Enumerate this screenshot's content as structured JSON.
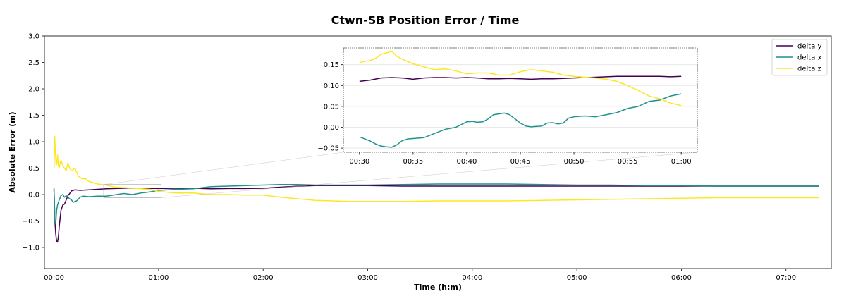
{
  "chart_data": {
    "type": "line",
    "title": "Ctwn-SB Position Error / Time",
    "xlabel": "Time (h:m)",
    "ylabel": "Absolute Error (m)",
    "x_unit": "minutes",
    "xlim": [
      -5.5,
      446
    ],
    "ylim": [
      -1.4,
      3.0
    ],
    "x_ticks": [
      0,
      60,
      120,
      180,
      240,
      300,
      360,
      420
    ],
    "x_tick_labels": [
      "00:00",
      "01:00",
      "02:00",
      "03:00",
      "04:00",
      "05:00",
      "06:00",
      "07:00"
    ],
    "y_ticks": [
      -1.0,
      -0.5,
      0.0,
      0.5,
      1.0,
      1.5,
      2.0,
      2.5,
      3.0
    ],
    "y_tick_labels": [
      "−1.0",
      "−0.5",
      "0.0",
      "0.5",
      "1.0",
      "1.5",
      "2.0",
      "2.5",
      "3.0"
    ],
    "legend_position": "top-right",
    "grid": false,
    "series": [
      {
        "name": "delta y",
        "color": "#440154",
        "x": [
          0,
          0.5,
          1,
          1.5,
          2,
          2.5,
          3,
          4,
          5,
          6,
          7,
          8,
          9,
          10,
          12,
          15,
          20,
          25,
          30,
          40,
          50,
          60,
          70,
          80,
          90,
          100,
          110,
          120,
          130,
          140,
          150,
          160,
          170,
          180,
          200,
          220,
          240,
          260,
          280,
          300,
          320,
          340,
          360,
          380,
          400,
          420,
          439
        ],
        "values": [
          0.1,
          -0.5,
          -0.75,
          -0.88,
          -0.9,
          -0.8,
          -0.6,
          -0.3,
          -0.2,
          -0.18,
          -0.1,
          -0.02,
          0.02,
          0.07,
          0.09,
          0.08,
          0.09,
          0.1,
          0.11,
          0.12,
          0.12,
          0.115,
          0.12,
          0.12,
          0.11,
          0.115,
          0.115,
          0.12,
          0.14,
          0.16,
          0.17,
          0.17,
          0.17,
          0.17,
          0.16,
          0.16,
          0.16,
          0.16,
          0.16,
          0.16,
          0.16,
          0.16,
          0.16,
          0.16,
          0.16,
          0.16,
          0.16
        ]
      },
      {
        "name": "delta x",
        "color": "#21918c",
        "x": [
          0,
          0.5,
          1,
          1.5,
          2,
          3,
          4,
          5,
          6,
          7,
          8,
          9,
          10,
          11,
          12,
          13,
          15,
          17,
          20,
          25,
          30,
          40,
          45,
          50,
          55,
          60,
          70,
          80,
          90,
          100,
          110,
          120,
          130,
          140,
          150,
          160,
          170,
          180,
          200,
          220,
          240,
          260,
          280,
          300,
          320,
          340,
          360,
          380,
          400,
          420,
          439
        ],
        "values": [
          0.12,
          -0.5,
          -0.55,
          -0.3,
          -0.2,
          -0.1,
          -0.02,
          0.0,
          -0.05,
          -0.02,
          -0.05,
          -0.08,
          -0.1,
          -0.15,
          -0.13,
          -0.12,
          -0.05,
          -0.03,
          -0.04,
          -0.03,
          -0.03,
          0.02,
          0.0,
          0.03,
          0.05,
          0.08,
          0.1,
          0.11,
          0.15,
          0.16,
          0.17,
          0.18,
          0.19,
          0.19,
          0.18,
          0.18,
          0.18,
          0.18,
          0.19,
          0.2,
          0.2,
          0.2,
          0.19,
          0.18,
          0.18,
          0.17,
          0.17,
          0.16,
          0.16,
          0.16,
          0.16
        ]
      },
      {
        "name": "delta z",
        "color": "#fde725",
        "x": [
          0,
          0.4,
          0.8,
          1.2,
          1.6,
          2,
          2.5,
          3,
          3.5,
          4,
          5,
          6,
          7,
          8,
          9,
          10,
          12,
          14,
          16,
          18,
          20,
          25,
          30,
          35,
          40,
          45,
          50,
          55,
          60,
          70,
          80,
          90,
          100,
          110,
          120,
          130,
          140,
          150,
          160,
          170,
          180,
          200,
          220,
          240,
          260,
          280,
          300,
          320,
          340,
          360,
          380,
          400,
          420,
          439
        ],
        "values": [
          0.5,
          1.1,
          0.8,
          0.55,
          0.6,
          0.75,
          0.55,
          0.5,
          0.6,
          0.65,
          0.55,
          0.5,
          0.45,
          0.6,
          0.5,
          0.45,
          0.5,
          0.35,
          0.3,
          0.3,
          0.25,
          0.2,
          0.18,
          0.14,
          0.13,
          0.12,
          0.11,
          0.1,
          0.06,
          0.03,
          0.03,
          0.0,
          0.0,
          -0.01,
          -0.01,
          -0.05,
          -0.08,
          -0.11,
          -0.12,
          -0.13,
          -0.13,
          -0.13,
          -0.12,
          -0.12,
          -0.12,
          -0.11,
          -0.1,
          -0.09,
          -0.08,
          -0.07,
          -0.06,
          -0.06,
          -0.06,
          -0.06
        ]
      }
    ],
    "inset": {
      "xlim": [
        28.5,
        61.5
      ],
      "ylim": [
        -0.06,
        0.19
      ],
      "x_ticks": [
        30,
        35,
        40,
        45,
        50,
        55,
        60
      ],
      "x_tick_labels": [
        "00:30",
        "00:35",
        "00:40",
        "00:45",
        "00:50",
        "00:55",
        "01:00"
      ],
      "y_ticks": [
        -0.05,
        0.0,
        0.05,
        0.1,
        0.15
      ],
      "y_tick_labels": [
        "−0.05",
        "0.00",
        "0.05",
        "0.10",
        "0.15"
      ],
      "grid": true,
      "series": [
        {
          "name": "delta y",
          "color": "#440154",
          "x": [
            30,
            31,
            32,
            33,
            34,
            35,
            36,
            37,
            38,
            39,
            40,
            41,
            42,
            43,
            44,
            45,
            46,
            47,
            48,
            49,
            50,
            51,
            52,
            53,
            54,
            55,
            56,
            57,
            58,
            59,
            60
          ],
          "values": [
            0.11,
            0.113,
            0.118,
            0.119,
            0.118,
            0.115,
            0.118,
            0.119,
            0.119,
            0.118,
            0.119,
            0.118,
            0.116,
            0.116,
            0.117,
            0.116,
            0.115,
            0.116,
            0.116,
            0.117,
            0.118,
            0.119,
            0.12,
            0.121,
            0.122,
            0.122,
            0.122,
            0.122,
            0.122,
            0.121,
            0.122
          ]
        },
        {
          "name": "delta x",
          "color": "#21918c",
          "x": [
            30,
            30.5,
            31,
            31.5,
            32,
            32.5,
            33,
            33.5,
            34,
            34.5,
            35,
            36,
            37,
            38,
            39,
            40,
            40.5,
            41,
            41.5,
            42,
            42.5,
            43,
            43.5,
            44,
            44.5,
            45,
            45.5,
            46,
            46.5,
            47,
            47.5,
            48,
            48.5,
            49,
            49.5,
            50,
            51,
            52,
            53,
            54,
            55,
            56,
            57,
            58,
            59,
            60
          ],
          "values": [
            -0.023,
            -0.028,
            -0.033,
            -0.04,
            -0.045,
            -0.047,
            -0.048,
            -0.042,
            -0.032,
            -0.028,
            -0.027,
            -0.025,
            -0.015,
            -0.005,
            0.0,
            0.013,
            0.014,
            0.012,
            0.013,
            0.02,
            0.03,
            0.032,
            0.034,
            0.03,
            0.02,
            0.01,
            0.003,
            0.001,
            0.002,
            0.003,
            0.01,
            0.011,
            0.008,
            0.01,
            0.022,
            0.025,
            0.027,
            0.025,
            0.03,
            0.035,
            0.045,
            0.05,
            0.062,
            0.065,
            0.075,
            0.08
          ]
        },
        {
          "name": "delta z",
          "color": "#fde725",
          "x": [
            30,
            30.5,
            31,
            31.5,
            32,
            32.5,
            33,
            33.5,
            34,
            35,
            36,
            37,
            38,
            39,
            40,
            41,
            42,
            43,
            44,
            45,
            46,
            47,
            48,
            49,
            50,
            51,
            52,
            53,
            54,
            55,
            56,
            57,
            58,
            59,
            60
          ],
          "values": [
            0.155,
            0.158,
            0.16,
            0.165,
            0.175,
            0.178,
            0.182,
            0.17,
            0.163,
            0.152,
            0.145,
            0.138,
            0.14,
            0.135,
            0.128,
            0.13,
            0.13,
            0.125,
            0.125,
            0.133,
            0.138,
            0.135,
            0.132,
            0.125,
            0.122,
            0.12,
            0.118,
            0.115,
            0.11,
            0.1,
            0.088,
            0.075,
            0.068,
            0.058,
            0.052
          ]
        }
      ]
    }
  }
}
